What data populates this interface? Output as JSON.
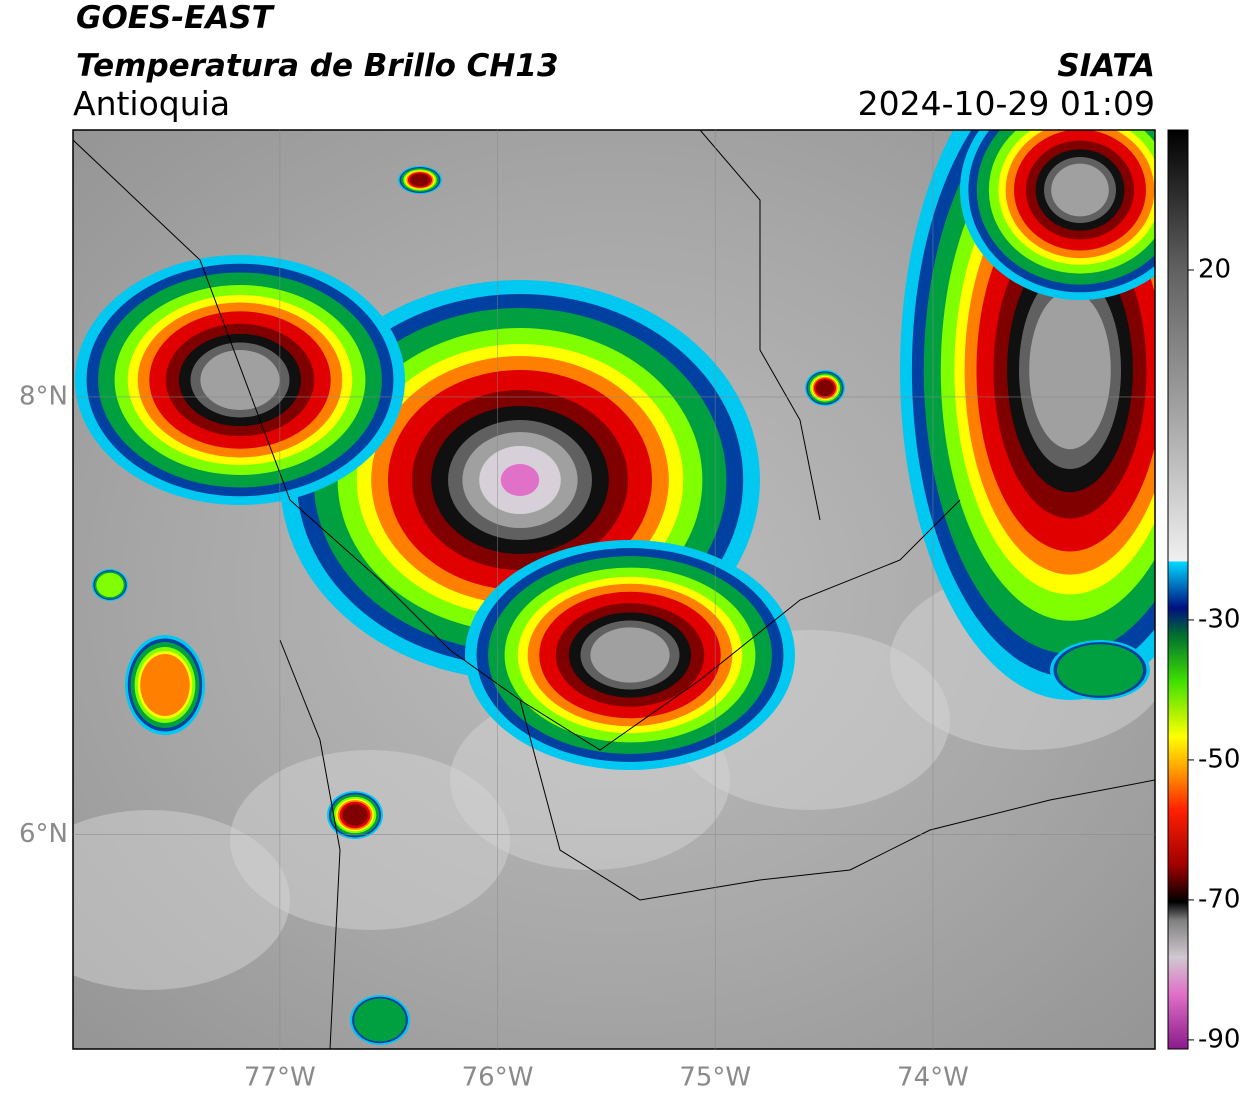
{
  "header": {
    "title": "GOES-EAST",
    "subtitle": "Temperatura de Brillo CH13",
    "region": "Antioquia",
    "source": "SIATA",
    "datetime": "2024-10-29 01:09"
  },
  "map": {
    "xlim": [
      -77.95,
      -72.98
    ],
    "ylim": [
      5.02,
      9.22
    ],
    "xticks": [
      {
        "value": -77,
        "label": "77°W"
      },
      {
        "value": -76,
        "label": "76°W"
      },
      {
        "value": -75,
        "label": "75°W"
      },
      {
        "value": -74,
        "label": "74°W"
      }
    ],
    "yticks": [
      {
        "value": 8,
        "label": "8°N"
      },
      {
        "value": 6,
        "label": "6°N"
      }
    ],
    "grid": true
  },
  "colorbar": {
    "lim": [
      -91.3,
      40
    ],
    "ticks": [
      20,
      -30,
      -50,
      -70,
      -90
    ]
  }
}
